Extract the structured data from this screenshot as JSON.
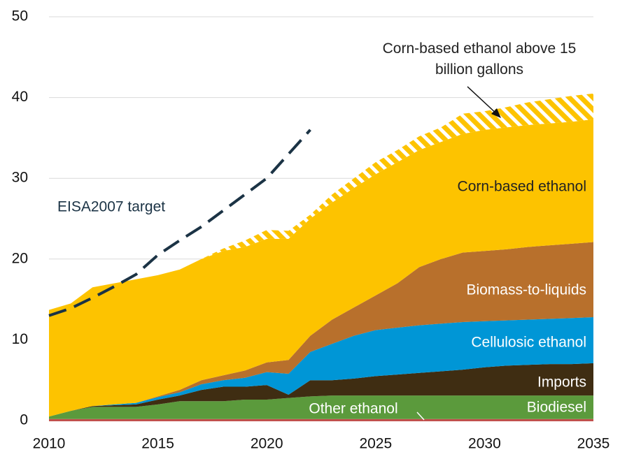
{
  "chart_data": {
    "type": "stacked_area",
    "x": [
      2010,
      2011,
      2012,
      2013,
      2014,
      2015,
      2016,
      2017,
      2018,
      2019,
      2020,
      2021,
      2022,
      2023,
      2024,
      2025,
      2026,
      2027,
      2028,
      2029,
      2030,
      2031,
      2032,
      2033,
      2034,
      2035
    ],
    "series": [
      {
        "name": "Other ethanol",
        "color": "#c0504d",
        "values": [
          0.2,
          0.2,
          0.2,
          0.2,
          0.2,
          0.2,
          0.2,
          0.2,
          0.2,
          0.2,
          0.2,
          0.2,
          0.2,
          0.2,
          0.2,
          0.2,
          0.2,
          0.2,
          0.2,
          0.2,
          0.2,
          0.2,
          0.2,
          0.2,
          0.2,
          0.2
        ]
      },
      {
        "name": "Biodiesel",
        "color": "#5b9a3c",
        "values": [
          0.3,
          1.0,
          1.5,
          1.5,
          1.5,
          1.8,
          2.2,
          2.2,
          2.2,
          2.4,
          2.4,
          2.6,
          2.8,
          2.9,
          2.9,
          2.9,
          2.9,
          2.9,
          2.9,
          2.9,
          2.9,
          2.9,
          2.9,
          2.9,
          2.9,
          2.9
        ]
      },
      {
        "name": "Imports",
        "color": "#3f2d12",
        "values": [
          0,
          0,
          0.1,
          0.2,
          0.3,
          0.6,
          0.7,
          1.4,
          1.8,
          1.6,
          1.8,
          0.4,
          2.0,
          1.9,
          2.1,
          2.4,
          2.6,
          2.8,
          3.0,
          3.2,
          3.5,
          3.7,
          3.8,
          3.9,
          3.9,
          4.0
        ]
      },
      {
        "name": "Cellulosic ethanol",
        "color": "#0096d6",
        "values": [
          0,
          0,
          0,
          0.1,
          0.2,
          0.3,
          0.4,
          0.7,
          0.8,
          1.1,
          1.6,
          2.6,
          3.5,
          4.5,
          5.3,
          5.7,
          5.8,
          5.9,
          5.9,
          5.9,
          5.7,
          5.6,
          5.6,
          5.6,
          5.7,
          5.7
        ]
      },
      {
        "name": "Biomass-to-liquids",
        "color": "#b8702c",
        "values": [
          0,
          0,
          0,
          0,
          0,
          0.1,
          0.3,
          0.5,
          0.6,
          0.9,
          1.2,
          1.7,
          2.0,
          3.0,
          3.5,
          4.3,
          5.5,
          7.2,
          8.0,
          8.6,
          8.7,
          8.8,
          9.0,
          9.1,
          9.2,
          9.3
        ]
      },
      {
        "name": "Corn-based ethanol",
        "color": "#fdc300",
        "values": [
          13.2,
          13.3,
          14.7,
          15.0,
          15.3,
          15.0,
          14.9,
          15.0,
          15.4,
          15.3,
          15.3,
          15.0,
          14.5,
          14.5,
          14.8,
          15.0,
          15.0,
          14.5,
          14.5,
          14.7,
          15.0,
          15.1,
          15.1,
          15.1,
          15.1,
          15.2
        ]
      },
      {
        "name": "Corn-based ethanol above 15 billion gallons",
        "color": "#fdc300",
        "hatch": true,
        "values": [
          0,
          0,
          0,
          0,
          0,
          0,
          0,
          0,
          0.3,
          0.8,
          1.1,
          1.0,
          0.5,
          1.0,
          1.2,
          1.5,
          1.5,
          1.7,
          1.8,
          2.5,
          2.3,
          2.5,
          2.8,
          3.0,
          3.2,
          3.2
        ]
      }
    ],
    "target_line": {
      "name": "EISA2007 target",
      "color": "#1b3345",
      "x": [
        2010,
        2011,
        2012,
        2013,
        2014,
        2015,
        2016,
        2017,
        2018,
        2019,
        2020,
        2021,
        2022
      ],
      "values": [
        13.0,
        13.9,
        15.2,
        16.6,
        18.1,
        20.5,
        22.3,
        24.0,
        26.0,
        28.0,
        30.0,
        33.0,
        36.0
      ]
    },
    "xlim": [
      2010,
      2035
    ],
    "xticks": [
      2010,
      2015,
      2020,
      2025,
      2030,
      2035
    ],
    "ylim": [
      0,
      50
    ],
    "yticks": [
      0,
      10,
      20,
      30,
      40,
      50
    ],
    "grid": true
  }
}
